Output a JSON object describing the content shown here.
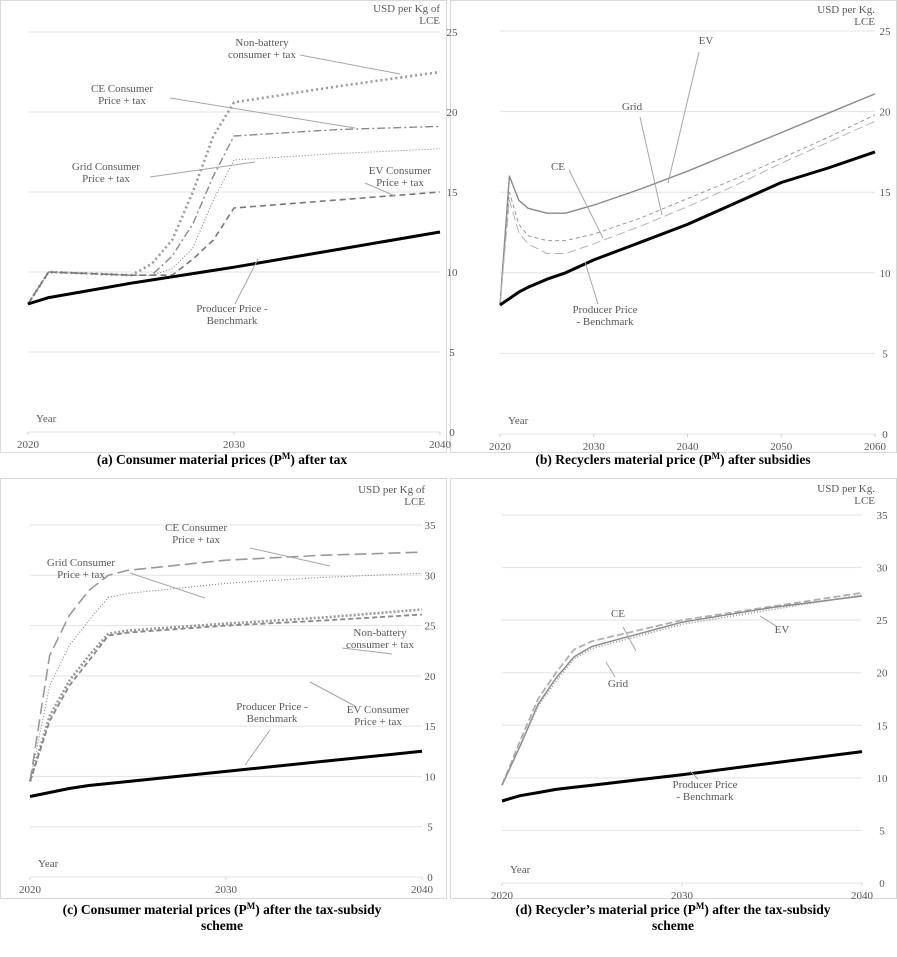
{
  "chart_data": [
    {
      "type": "line",
      "caption": [
        [
          "(a) Consumer material prices (P",
          "M",
          ") after tax"
        ]
      ],
      "y_label": [
        "USD per Kg of",
        "LCE"
      ],
      "x_label": "Year",
      "x": [
        2020,
        2021,
        2025,
        2026,
        2027,
        2028,
        2029,
        2030,
        2035,
        2040
      ],
      "xlim": [
        2020,
        2040
      ],
      "xticks": [
        2020,
        2030,
        2040
      ],
      "ylim": [
        0,
        25
      ],
      "yticks": [
        0,
        5,
        10,
        15,
        20,
        25
      ],
      "grid": true,
      "series": [
        {
          "name": "Non-battery consumer + tax",
          "color": "#9a9a9a",
          "dash": "2 3",
          "width": 2.6,
          "values": [
            8,
            10,
            9.8,
            10.5,
            12,
            15,
            18.5,
            20.6,
            21.6,
            22.5
          ]
        },
        {
          "name": "CE Consumer Price + tax",
          "color": "#8a8a8a",
          "dash": "8 3 2 3",
          "width": 1.4,
          "values": [
            8,
            10,
            9.8,
            9.8,
            11,
            13,
            16,
            18.5,
            18.9,
            19.1
          ]
        },
        {
          "name": "Grid Consumer Price + tax",
          "color": "#7a7a7a",
          "dash": "1 2",
          "width": 1,
          "values": [
            8,
            10,
            9.8,
            9.8,
            10.2,
            11.5,
            14.5,
            17,
            17.4,
            17.7
          ]
        },
        {
          "name": "EV Consumer Price + tax",
          "color": "#777777",
          "dash": "6 4",
          "width": 1.6,
          "values": [
            8,
            10,
            9.8,
            9.8,
            9.8,
            10.8,
            12,
            14,
            14.5,
            15
          ]
        },
        {
          "name": "Producer Price - Benchmark",
          "color": "#000000",
          "dash": "",
          "width": 3,
          "values": [
            8,
            8.4,
            9.3,
            9.5,
            9.7,
            9.9,
            10.1,
            10.3,
            11.4,
            12.5
          ]
        }
      ],
      "annotations": [
        [
          "Non-battery",
          "consumer + tax"
        ],
        [
          "CE Consumer",
          "Price + tax"
        ],
        [
          "Grid Consumer",
          "Price + tax"
        ],
        [
          "EV Consumer",
          "Price + tax"
        ],
        [
          "Producer Price -",
          "Benchmark"
        ]
      ]
    },
    {
      "type": "line",
      "caption": [
        [
          "(b) Recyclers material price (P",
          "M",
          ") after subsidies"
        ]
      ],
      "y_label": [
        "USD per Kg.",
        "LCE"
      ],
      "x_label": "Year",
      "x": [
        2020,
        2021,
        2022,
        2023,
        2025,
        2027,
        2030,
        2035,
        2040,
        2045,
        2050,
        2055,
        2060
      ],
      "xlim": [
        2020,
        2060
      ],
      "xticks": [
        2020,
        2030,
        2040,
        2050,
        2060
      ],
      "ylim": [
        0,
        25
      ],
      "yticks": [
        0,
        5,
        10,
        15,
        20,
        25
      ],
      "grid": true,
      "series": [
        {
          "name": "EV",
          "color": "#8a8a8a",
          "dash": "",
          "width": 1.4,
          "values": [
            8,
            16,
            14.5,
            14,
            13.7,
            13.7,
            14.2,
            15.2,
            16.3,
            17.5,
            18.7,
            19.9,
            21.1
          ]
        },
        {
          "name": "Grid",
          "color": "#9a9a9a",
          "dash": "4 3",
          "width": 1,
          "values": [
            8,
            15,
            13,
            12.3,
            12,
            12,
            12.4,
            13.4,
            14.6,
            15.8,
            17.1,
            18.4,
            19.8
          ]
        },
        {
          "name": "CE",
          "color": "#b5b5b5",
          "dash": "9 4",
          "width": 1,
          "values": [
            8,
            14.5,
            12.5,
            11.8,
            11.2,
            11.2,
            11.8,
            12.9,
            14.1,
            15.4,
            16.8,
            18.1,
            19.4
          ]
        },
        {
          "name": "Producer Price - Benchmark",
          "color": "#000000",
          "dash": "",
          "width": 3,
          "values": [
            8,
            8.4,
            8.8,
            9.1,
            9.6,
            10,
            10.8,
            11.9,
            13,
            14.3,
            15.6,
            16.5,
            17.5
          ]
        }
      ],
      "annotations": [
        [
          "EV"
        ],
        [
          "Grid"
        ],
        [
          "CE"
        ],
        [
          "Producer Price",
          "- Benchmark"
        ]
      ]
    },
    {
      "type": "line",
      "caption": [
        [
          "(c) Consumer material prices (P",
          "M",
          ") after the tax-subsidy"
        ],
        [
          "scheme"
        ]
      ],
      "y_label": [
        "USD per Kg of",
        "LCE"
      ],
      "x_label": "Year",
      "x": [
        2020,
        2021,
        2022,
        2023,
        2024,
        2025,
        2030,
        2035,
        2040
      ],
      "xlim": [
        2020,
        2040
      ],
      "xticks": [
        2020,
        2030,
        2040
      ],
      "ylim": [
        0,
        35
      ],
      "yticks": [
        0,
        5,
        10,
        15,
        20,
        25,
        30,
        35
      ],
      "grid": true,
      "series": [
        {
          "name": "CE Consumer Price + tax",
          "color": "#9a9a9a",
          "dash": "12 5",
          "width": 1.6,
          "values": [
            9.5,
            22,
            26,
            28.5,
            30,
            30.5,
            31.5,
            32,
            32.3
          ]
        },
        {
          "name": "Grid Consumer Price + tax",
          "color": "#777777",
          "dash": "1 2",
          "width": 1,
          "values": [
            9.5,
            19,
            23,
            25.5,
            27.8,
            28.2,
            29.2,
            29.8,
            30.2
          ]
        },
        {
          "name": "Non-battery consumer + tax",
          "color": "#9a9a9a",
          "dash": "2 2",
          "width": 2.6,
          "values": [
            9.5,
            16,
            19.5,
            22,
            24.2,
            24.5,
            25.2,
            25.8,
            26.6
          ]
        },
        {
          "name": "EV Consumer Price + tax",
          "color": "#888888",
          "dash": "5 3",
          "width": 1.8,
          "values": [
            9.5,
            15.5,
            19,
            21.5,
            24,
            24.3,
            25,
            25.5,
            26.1
          ]
        },
        {
          "name": "Producer Price - Benchmark",
          "color": "#000000",
          "dash": "",
          "width": 3,
          "values": [
            8,
            8.4,
            8.8,
            9.1,
            9.3,
            9.5,
            10.5,
            11.5,
            12.5
          ]
        }
      ],
      "annotations": [
        [
          "CE Consumer",
          "Price + tax"
        ],
        [
          "Grid Consumer",
          "Price + tax"
        ],
        [
          "Non-battery",
          "consumer + tax"
        ],
        [
          "EV Consumer",
          "Price + tax"
        ],
        [
          "Producer Price -",
          "Benchmark"
        ]
      ]
    },
    {
      "type": "line",
      "caption": [
        [
          "(d) Recycler’s material price (P",
          "M",
          ") after the tax-subsidy"
        ],
        [
          "scheme"
        ]
      ],
      "y_label": [
        "USD per Kg.",
        "LCE"
      ],
      "x_label": "Year",
      "x": [
        2020,
        2021,
        2022,
        2023,
        2024,
        2025,
        2030,
        2035,
        2040
      ],
      "xlim": [
        2020,
        2040
      ],
      "xticks": [
        2020,
        2030,
        2040
      ],
      "ylim": [
        0,
        35
      ],
      "yticks": [
        0,
        5,
        10,
        15,
        20,
        25,
        30,
        35
      ],
      "grid": true,
      "series": [
        {
          "name": "CE",
          "color": "#b0b0b0",
          "dash": "7 3",
          "width": 1.8,
          "values": [
            9.3,
            13.5,
            17.5,
            20,
            22.2,
            23,
            25,
            26.3,
            27.6
          ]
        },
        {
          "name": "EV",
          "color": "#8a8a8a",
          "dash": "",
          "width": 1.4,
          "values": [
            9.3,
            13,
            17,
            19.5,
            21.5,
            22.5,
            24.8,
            26.2,
            27.3
          ]
        },
        {
          "name": "Grid",
          "color": "#999999",
          "dash": "1 2",
          "width": 1.6,
          "values": [
            9.3,
            13,
            16.8,
            19.2,
            21.3,
            22.3,
            24.6,
            26,
            27.4
          ]
        },
        {
          "name": "Producer Price - Benchmark",
          "color": "#000000",
          "dash": "",
          "width": 3,
          "values": [
            7.8,
            8.3,
            8.6,
            8.9,
            9.1,
            9.3,
            10.3,
            11.4,
            12.5
          ]
        }
      ],
      "annotations": [
        [
          "CE"
        ],
        [
          "EV"
        ],
        [
          "Grid"
        ],
        [
          "Producer Price",
          "- Benchmark"
        ]
      ]
    }
  ]
}
